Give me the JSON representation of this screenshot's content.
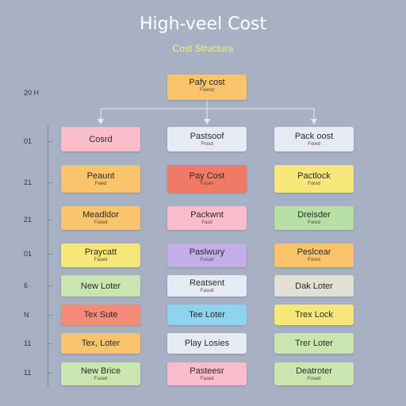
{
  "header": {
    "title": "High-veel Cost",
    "subtitle": "Cost Structura"
  },
  "root": {
    "label": "Pafy cost",
    "sublabel": "Fwend",
    "color": "#f9c46b"
  },
  "y_labels": [
    "20 H",
    "01",
    "21",
    "21",
    "01",
    "6",
    "N",
    "11",
    "11"
  ],
  "rows": [
    [
      {
        "label": "Cosrd",
        "sublabel": "",
        "color": "#f8bccb"
      },
      {
        "label": "Pastsoof",
        "sublabel": "Frosd",
        "color": "#e6eaf3"
      },
      {
        "label": "Pack oost",
        "sublabel": "Fored",
        "color": "#e6eaf3"
      }
    ],
    [
      {
        "label": "Peaunt",
        "sublabel": "Fwed",
        "color": "#f9c46b"
      },
      {
        "label": "Pay Cost",
        "sublabel": "Fasen",
        "color": "#f07a66"
      },
      {
        "label": "Pactlock",
        "sublabel": "Forod",
        "color": "#f7e67a"
      }
    ],
    [
      {
        "label": "Meadldor",
        "sublabel": "Fosed",
        "color": "#f9c46b"
      },
      {
        "label": "Packwnt",
        "sublabel": "Fasd",
        "color": "#f8bccb"
      },
      {
        "label": "Dreisder",
        "sublabel": "Fored",
        "color": "#b7e0a6"
      }
    ],
    [
      {
        "label": "Praycatt",
        "sublabel": "Fased",
        "color": "#f7e67a"
      },
      {
        "label": "Paslwury",
        "sublabel": "Fusud",
        "color": "#c3aee8"
      },
      {
        "label": "Peslcear",
        "sublabel": "Fored",
        "color": "#f9c46b"
      }
    ],
    [
      {
        "label": "New Loter",
        "sublabel": "",
        "color": "#c9e6b0"
      },
      {
        "label": "Reatsent",
        "sublabel": "Fasud",
        "color": "#e6eaf3"
      },
      {
        "label": "Dak Loter",
        "sublabel": "",
        "color": "#e2dfd5"
      }
    ],
    [
      {
        "label": "Tex Sute",
        "sublabel": "",
        "color": "#f48b7a"
      },
      {
        "label": "Tee Loter",
        "sublabel": "",
        "color": "#8fd3ee"
      },
      {
        "label": "Trex Lock",
        "sublabel": "",
        "color": "#f7e67a"
      }
    ],
    [
      {
        "label": "Tex, Loter",
        "sublabel": "",
        "color": "#f9c46b"
      },
      {
        "label": "Play Losies",
        "sublabel": "",
        "color": "#e6eaf3"
      },
      {
        "label": "Trer Loter",
        "sublabel": "",
        "color": "#c9e6b0"
      }
    ],
    [
      {
        "label": "New Brice",
        "sublabel": "Fused",
        "color": "#c9e6b0"
      },
      {
        "label": "Pasteesr",
        "sublabel": "Fased",
        "color": "#f8bccb"
      },
      {
        "label": "Deatroter",
        "sublabel": "Fosed",
        "color": "#c9e6b0"
      }
    ]
  ]
}
